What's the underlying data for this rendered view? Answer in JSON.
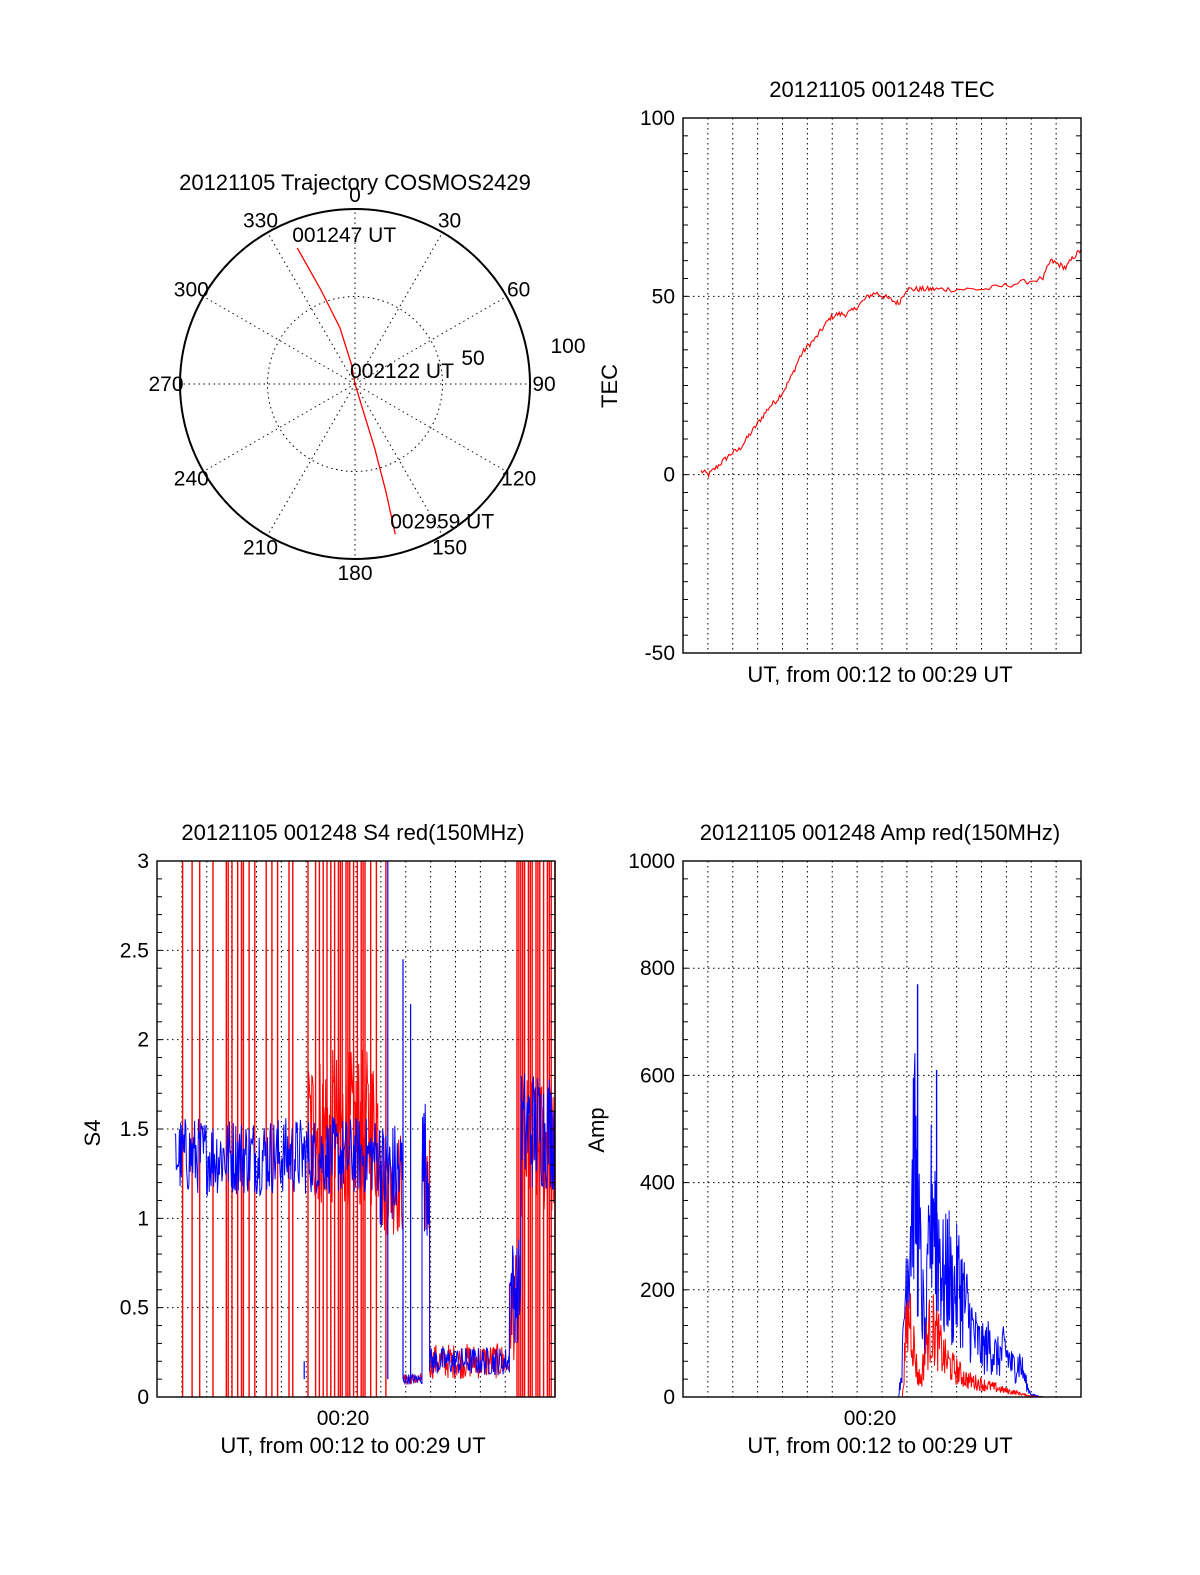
{
  "colors": {
    "red": "#ff0000",
    "blue": "#0000ff",
    "axes": "#000000",
    "background": "#ffffff"
  },
  "chart_data": [
    {
      "id": "trajectory",
      "type": "polar",
      "title": "20121105 Trajectory COSMOS2429",
      "angle_labels": [
        "0",
        "30",
        "60",
        "90",
        "120",
        "150",
        "180",
        "210",
        "240",
        "270",
        "300",
        "330"
      ],
      "radius_labels": [
        "50",
        "100"
      ],
      "rlim": [
        0,
        100
      ],
      "grid": true,
      "series": [
        {
          "color": "red",
          "points": [
            {
              "azimuth": 337,
              "elevation": 14,
              "label": "001247 UT"
            },
            {
              "azimuth": 340,
              "elevation": 38
            },
            {
              "azimuth": 345,
              "elevation": 60
            },
            {
              "azimuth": 350,
              "elevation": 80
            },
            {
              "azimuth": 0,
              "elevation": 90,
              "label": "002122 UT"
            },
            {
              "azimuth": 163,
              "elevation": 78
            },
            {
              "azimuth": 163,
              "elevation": 55
            },
            {
              "azimuth": 164,
              "elevation": 32
            },
            {
              "azimuth": 165,
              "elevation": 10,
              "label": "002959 UT"
            }
          ]
        }
      ]
    },
    {
      "id": "tec",
      "type": "line",
      "title": "20121105 001248 TEC",
      "xlabel": "UT, from 00:12 to 00:29 UT",
      "ylabel": "TEC",
      "xlim": [
        0,
        1
      ],
      "ylim": [
        -50,
        100
      ],
      "yticks": [
        "100",
        "50",
        "0",
        "-50"
      ],
      "ytick_values": [
        100,
        50,
        0,
        -50
      ],
      "grid": true,
      "series": [
        {
          "color": "red",
          "x": [
            0.0,
            0.02,
            0.04,
            0.06,
            0.08,
            0.1,
            0.12,
            0.14,
            0.16,
            0.18,
            0.2,
            0.22,
            0.24,
            0.26,
            0.28,
            0.3,
            0.32,
            0.34,
            0.36,
            0.38,
            0.4,
            0.42,
            0.44,
            0.46,
            0.48,
            0.5,
            0.52,
            0.54,
            0.56,
            0.58,
            0.6,
            0.62,
            0.65,
            0.7,
            0.75,
            0.8,
            0.85,
            0.9,
            0.92,
            0.94,
            0.96,
            0.98,
            1.0
          ],
          "y": [
            1,
            0,
            2,
            4,
            6,
            7,
            10,
            13,
            16,
            19,
            21,
            24,
            28,
            33,
            36,
            38,
            41,
            44,
            45,
            45,
            46,
            48,
            50,
            51,
            50,
            49,
            48,
            52,
            52,
            52,
            52,
            52,
            52,
            52,
            52,
            53,
            54,
            55,
            60,
            59,
            58,
            61,
            63
          ]
        }
      ]
    },
    {
      "id": "s4",
      "type": "line",
      "title": "20121105 001248 S4 red(150MHz)",
      "xlabel": "UT, from 00:12 to 00:29 UT",
      "ylabel": "S4",
      "xtick_label": "00:20",
      "xlim": [
        0,
        1
      ],
      "ylim": [
        0,
        3
      ],
      "yticks": [
        "3",
        "2.5",
        "2",
        "1.5",
        "1",
        "0.5",
        "0"
      ],
      "ytick_values": [
        3,
        2.5,
        2,
        1.5,
        1,
        0.5,
        0
      ],
      "grid": true,
      "series": [
        {
          "color": "blue",
          "segments": [
            [
              0,
              0.54,
              1.35,
              0.22
            ],
            [
              0.54,
              0.6,
              1.25,
              0.3
            ],
            [
              0.6,
              0.65,
              0.1,
              0.03
            ],
            [
              0.65,
              0.67,
              1.3,
              0.4
            ],
            [
              0.67,
              0.88,
              0.2,
              0.08
            ],
            [
              0.88,
              0.91,
              0.6,
              0.3
            ],
            [
              0.91,
              1.0,
              1.5,
              0.35
            ]
          ],
          "spikes": [
            {
              "x": 0.34,
              "y": 0.2
            },
            {
              "x": 0.56,
              "y": 3
            },
            {
              "x": 0.62,
              "y": 2.2
            },
            {
              "x": 0.6,
              "y": 2.45
            }
          ]
        },
        {
          "color": "red",
          "segments": [
            [
              0.35,
              0.54,
              1.5,
              0.45
            ],
            [
              0.54,
              0.6,
              1.2,
              0.3
            ],
            [
              0.6,
              0.65,
              0.1,
              0.03
            ],
            [
              0.65,
              0.67,
              1.2,
              0.35
            ],
            [
              0.67,
              0.88,
              0.2,
              0.1
            ],
            [
              0.88,
              0.91,
              0.5,
              0.3
            ],
            [
              0.91,
              1.0,
              1.4,
              0.4
            ]
          ],
          "full_height_lines": [
            0.02,
            0.045,
            0.065,
            0.1,
            0.135,
            0.14,
            0.15,
            0.165,
            0.175,
            0.18,
            0.195,
            0.21,
            0.24,
            0.255,
            0.27,
            0.3,
            0.31,
            0.35,
            0.37,
            0.38,
            0.39,
            0.4,
            0.41,
            0.42,
            0.43,
            0.435,
            0.44,
            0.45,
            0.455,
            0.46,
            0.47,
            0.48,
            0.49,
            0.495,
            0.5,
            0.515,
            0.53,
            0.555,
            0.9,
            0.905,
            0.91,
            0.915,
            0.92,
            0.93,
            0.935,
            0.94,
            0.95,
            0.955,
            0.96,
            0.97,
            0.98,
            0.985,
            0.99,
            1.0
          ]
        }
      ]
    },
    {
      "id": "amp",
      "type": "line",
      "title": "20121105 001248 Amp red(150MHz)",
      "xlabel": "UT, from 00:12 to 00:29 UT",
      "ylabel": "Amp",
      "xtick_label": "00:20",
      "xlim": [
        0,
        1
      ],
      "ylim": [
        0,
        1000
      ],
      "yticks": [
        "1000",
        "800",
        "600",
        "400",
        "200",
        "0"
      ],
      "ytick_values": [
        1000,
        800,
        600,
        400,
        200,
        0
      ],
      "grid": true,
      "series": [
        {
          "color": "blue",
          "envelope": [
            [
              0,
              0
            ],
            [
              0.52,
              0
            ],
            [
              0.53,
              80
            ],
            [
              0.54,
              300
            ],
            [
              0.55,
              380
            ],
            [
              0.56,
              560
            ],
            [
              0.57,
              420
            ],
            [
              0.58,
              260
            ],
            [
              0.59,
              120
            ],
            [
              0.6,
              320
            ],
            [
              0.61,
              500
            ],
            [
              0.62,
              400
            ],
            [
              0.63,
              330
            ],
            [
              0.64,
              250
            ],
            [
              0.65,
              310
            ],
            [
              0.66,
              240
            ],
            [
              0.68,
              270
            ],
            [
              0.7,
              200
            ],
            [
              0.72,
              140
            ],
            [
              0.74,
              110
            ],
            [
              0.76,
              120
            ],
            [
              0.78,
              90
            ],
            [
              0.8,
              110
            ],
            [
              0.82,
              70
            ],
            [
              0.84,
              80
            ],
            [
              0.86,
              20
            ],
            [
              0.87,
              5
            ],
            [
              0.9,
              0
            ],
            [
              1.0,
              0
            ]
          ],
          "peaks": [
            {
              "x": 0.57,
              "y": 770
            },
            {
              "x": 0.62,
              "y": 610
            }
          ]
        },
        {
          "color": "red",
          "envelope": [
            [
              0,
              0
            ],
            [
              0.53,
              0
            ],
            [
              0.54,
              150
            ],
            [
              0.55,
              200
            ],
            [
              0.56,
              120
            ],
            [
              0.57,
              50
            ],
            [
              0.58,
              40
            ],
            [
              0.59,
              110
            ],
            [
              0.6,
              150
            ],
            [
              0.61,
              160
            ],
            [
              0.62,
              140
            ],
            [
              0.64,
              90
            ],
            [
              0.66,
              70
            ],
            [
              0.68,
              55
            ],
            [
              0.7,
              40
            ],
            [
              0.72,
              35
            ],
            [
              0.74,
              30
            ],
            [
              0.76,
              25
            ],
            [
              0.8,
              15
            ],
            [
              0.83,
              10
            ],
            [
              0.86,
              3
            ],
            [
              0.9,
              0
            ],
            [
              1.0,
              0
            ]
          ]
        }
      ]
    }
  ]
}
